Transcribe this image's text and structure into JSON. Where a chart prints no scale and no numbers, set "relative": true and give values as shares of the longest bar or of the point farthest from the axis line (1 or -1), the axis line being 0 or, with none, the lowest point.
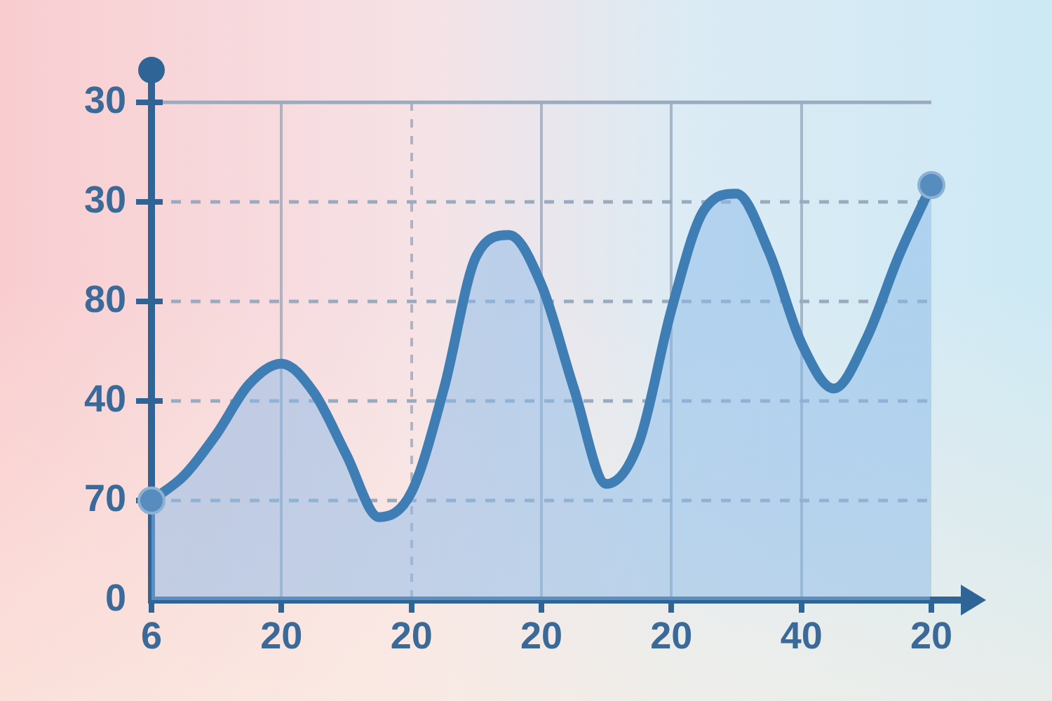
{
  "chart_data": {
    "type": "area",
    "relative": true,
    "categories": [
      "6",
      null,
      null,
      null,
      "20",
      null,
      null,
      null,
      "20",
      null,
      null,
      null,
      "20",
      null,
      null,
      null,
      "20",
      null,
      null,
      null,
      "40",
      null,
      null,
      null,
      "20"
    ],
    "series": [
      {
        "color": "#3f7db5",
        "values": [
          0.24,
          0.3,
          0.4,
          0.52,
          0.57,
          0.5,
          0.35,
          0.2,
          0.26,
          0.51,
          0.83,
          0.88,
          0.76,
          0.51,
          0.28,
          0.38,
          0.7,
          0.94,
          0.98,
          0.84,
          0.62,
          0.51,
          0.63,
          0.83,
          1.0
        ]
      }
    ],
    "ref_lines": [
      {
        "axis": "y",
        "value": 1.2,
        "color": "#9aabc0",
        "line_style": "solid"
      },
      {
        "axis": "y",
        "value": 0.96,
        "color": "#9aabc0",
        "line_style": "dashed"
      },
      {
        "axis": "y",
        "value": 0.72,
        "color": "#9aabc0",
        "line_style": "dashed"
      },
      {
        "axis": "y",
        "value": 0.48,
        "color": "#9aabc0",
        "line_style": "dashed"
      },
      {
        "axis": "y",
        "value": 0.24,
        "color": "#9aabc0",
        "line_style": "dashed"
      }
    ],
    "annotations": [
      "30",
      "30",
      "80",
      "40",
      "70",
      "0"
    ],
    "grid": "x"
  }
}
